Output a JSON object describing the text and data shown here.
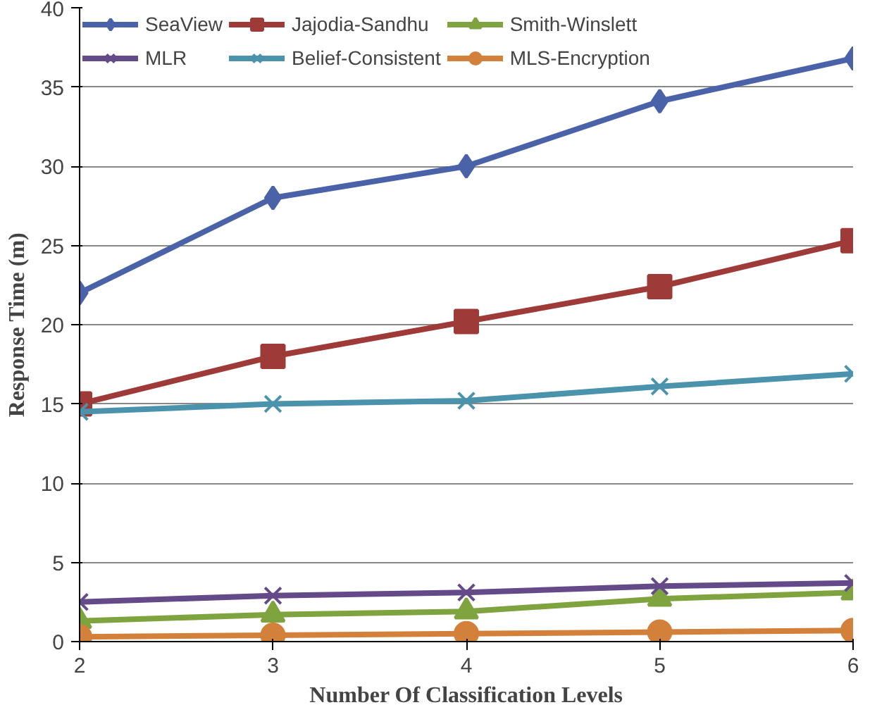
{
  "chart_data": {
    "type": "line",
    "xlabel": "Number Of Classification Levels",
    "ylabel": "Response Time (m)",
    "x": [
      2,
      3,
      4,
      5,
      6
    ],
    "xlim": [
      2,
      6
    ],
    "xticks": [
      2,
      3,
      4,
      5,
      6
    ],
    "ylim": [
      0,
      40
    ],
    "yticks": [
      0,
      5,
      10,
      15,
      20,
      25,
      30,
      35,
      40
    ],
    "grid": "y",
    "legend": "top",
    "line_style": "solid",
    "series": [
      {
        "name": "SeaView",
        "color": "#4a62a8",
        "marker": "diamond",
        "values": [
          22,
          28,
          30,
          34.1,
          36.8
        ]
      },
      {
        "name": "Jajodia-Sandhu",
        "color": "#9e3a37",
        "marker": "square",
        "values": [
          15,
          18,
          20.2,
          22.4,
          25.3
        ]
      },
      {
        "name": "Smith-Winslett",
        "color": "#7ea33f",
        "marker": "triangle",
        "values": [
          1.3,
          1.7,
          1.9,
          2.7,
          3.1
        ]
      },
      {
        "name": "MLR",
        "color": "#654a8a",
        "marker": "cross",
        "values": [
          2.5,
          2.9,
          3.1,
          3.5,
          3.7
        ]
      },
      {
        "name": "Belief-Consistent",
        "color": "#4b93ad",
        "marker": "cross",
        "values": [
          14.5,
          15,
          15.2,
          16.1,
          16.9
        ]
      },
      {
        "name": "MLS-Encryption",
        "color": "#d3803a",
        "marker": "circle",
        "values": [
          0.3,
          0.4,
          0.5,
          0.6,
          0.7
        ]
      }
    ]
  }
}
